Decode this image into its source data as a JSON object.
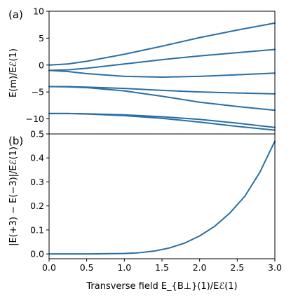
{
  "chart_data": [
    {
      "panel_label": "(a)",
      "type": "line",
      "ylabel": "E(m)/Eℰ(1)",
      "xlim": [
        0,
        3
      ],
      "ylim": [
        -12.8,
        10
      ],
      "yticks": [
        -10,
        -5,
        0,
        5,
        10
      ],
      "yticks_labels": [
        "−10",
        "−5",
        "0",
        "5",
        "10"
      ],
      "grid": false,
      "color": "#2b6ea4",
      "series": [
        {
          "x": [
            0,
            0.25,
            0.5,
            1.0,
            1.5,
            2.0,
            2.5,
            3.0
          ],
          "values": [
            0.0,
            0.2,
            0.7,
            2.0,
            3.5,
            5.1,
            6.5,
            7.8
          ]
        },
        {
          "x": [
            0,
            0.25,
            0.5,
            1.0,
            1.5,
            2.0,
            2.5,
            3.0
          ],
          "values": [
            -1.0,
            -0.9,
            -0.6,
            0.2,
            1.0,
            1.7,
            2.3,
            2.9
          ]
        },
        {
          "x": [
            0,
            0.25,
            0.5,
            1.0,
            1.5,
            2.0,
            2.5,
            3.0
          ],
          "values": [
            -1.0,
            -1.2,
            -1.6,
            -2.1,
            -2.25,
            -2.1,
            -1.8,
            -1.5
          ]
        },
        {
          "x": [
            0,
            0.25,
            0.5,
            1.0,
            1.5,
            2.0,
            2.5,
            3.0
          ],
          "values": [
            -4.0,
            -4.0,
            -4.1,
            -4.35,
            -4.7,
            -5.0,
            -5.2,
            -5.35
          ]
        },
        {
          "x": [
            0,
            0.25,
            0.5,
            1.0,
            1.5,
            2.0,
            2.5,
            3.0
          ],
          "values": [
            -4.0,
            -4.05,
            -4.2,
            -4.8,
            -5.8,
            -6.9,
            -7.7,
            -8.4
          ]
        },
        {
          "x": [
            0,
            0.25,
            0.5,
            1.0,
            1.5,
            2.0,
            2.5,
            3.0
          ],
          "values": [
            -9.0,
            -9.0,
            -9.05,
            -9.25,
            -9.6,
            -10.1,
            -10.8,
            -11.6
          ]
        },
        {
          "x": [
            0,
            0.25,
            0.5,
            1.0,
            1.5,
            2.0,
            2.5,
            3.0
          ],
          "values": [
            -9.0,
            -9.0,
            -9.1,
            -9.4,
            -9.9,
            -10.6,
            -11.4,
            -12.1
          ]
        }
      ]
    },
    {
      "panel_label": "(b)",
      "type": "line",
      "ylabel": "|E(+3) − E(−3)|/Eℰ(1)",
      "xlabel": "Transverse field E_{B⊥}(1)/Eℰ(1)",
      "xlim": [
        0,
        3
      ],
      "ylim": [
        -0.02,
        0.5
      ],
      "xticks": [
        0,
        0.5,
        1,
        1.5,
        2,
        2.5,
        3
      ],
      "xticks_labels": [
        "0.0",
        "0.5",
        "1.0",
        "1.5",
        "2.0",
        "2.5",
        "3.0"
      ],
      "yticks": [
        0,
        0.1,
        0.2,
        0.3,
        0.4,
        0.5
      ],
      "yticks_labels": [
        "0.0",
        "0.1",
        "0.2",
        "0.3",
        "0.4",
        "0.5"
      ],
      "grid": false,
      "color": "#2b6ea4",
      "series": [
        {
          "x": [
            0,
            0.5,
            1.0,
            1.2,
            1.4,
            1.6,
            1.8,
            2.0,
            2.2,
            2.4,
            2.6,
            2.8,
            3.0
          ],
          "values": [
            0.0,
            0.0,
            0.002,
            0.005,
            0.012,
            0.025,
            0.045,
            0.075,
            0.115,
            0.17,
            0.24,
            0.34,
            0.47
          ]
        }
      ]
    }
  ]
}
